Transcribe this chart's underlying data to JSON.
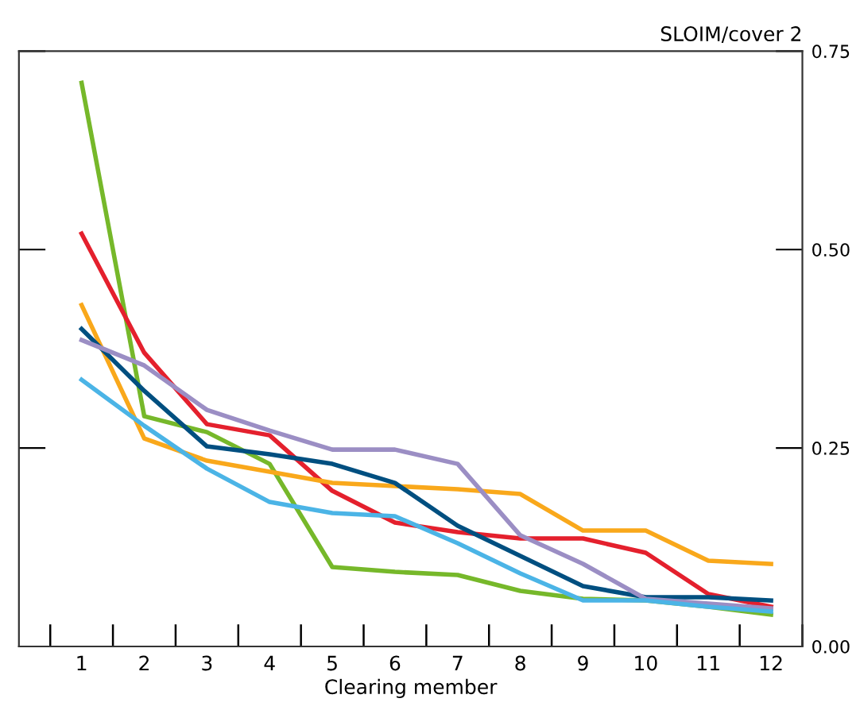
{
  "chart_data": {
    "type": "line",
    "ylabel": "SLOIM/cover 2",
    "xlabel": "Clearing member",
    "x": [
      1,
      2,
      3,
      4,
      5,
      6,
      7,
      8,
      9,
      10,
      11,
      12
    ],
    "xlim": [
      0,
      12.5
    ],
    "xticks": [
      {
        "value": 0.5,
        "label": null
      },
      1,
      {
        "value": 1.5,
        "label": null
      },
      2,
      {
        "value": 2.5,
        "label": null
      },
      3,
      {
        "value": 3.5,
        "label": null
      },
      4,
      {
        "value": 4.5,
        "label": null
      },
      5,
      {
        "value": 5.5,
        "label": null
      },
      6,
      {
        "value": 6.5,
        "label": null
      },
      7,
      {
        "value": 7.5,
        "label": null
      },
      8,
      {
        "value": 8.5,
        "label": null
      },
      9,
      {
        "value": 9.5,
        "label": null
      },
      10,
      {
        "value": 10.5,
        "label": null
      },
      11,
      {
        "value": 11.5,
        "label": null
      },
      12,
      {
        "value": 12.5,
        "label": null
      }
    ],
    "ylim": [
      0,
      0.75
    ],
    "yticks": [
      {
        "value": 0,
        "label": "0.00"
      },
      {
        "value": 0.25,
        "label": "0.25"
      },
      {
        "value": 0.5,
        "label": "0.50"
      },
      {
        "value": 0.75,
        "label": "0.75"
      }
    ],
    "grid": false,
    "legend": false,
    "marker": "none",
    "line_style": "solid",
    "series": [
      {
        "color": "#76b82a",
        "values": [
          0.71,
          0.29,
          0.27,
          0.23,
          0.1,
          0.094,
          0.09,
          0.07,
          0.06,
          0.058,
          0.05,
          0.04
        ]
      },
      {
        "color": "#e4202d",
        "values": [
          0.52,
          0.37,
          0.28,
          0.266,
          0.196,
          0.156,
          0.144,
          0.136,
          0.136,
          0.118,
          0.066,
          0.05
        ]
      },
      {
        "color": "#f9a81b",
        "values": [
          0.43,
          0.262,
          0.234,
          0.22,
          0.206,
          0.202,
          0.198,
          0.192,
          0.146,
          0.146,
          0.108,
          0.104
        ]
      },
      {
        "color": "#004f80",
        "values": [
          0.4,
          0.322,
          0.252,
          0.242,
          0.23,
          0.206,
          0.152,
          0.114,
          0.076,
          0.062,
          0.062,
          0.058
        ]
      },
      {
        "color": "#9b8ec4",
        "values": [
          0.386,
          0.354,
          0.298,
          0.272,
          0.248,
          0.248,
          0.23,
          0.14,
          0.104,
          0.06,
          0.054,
          0.048
        ]
      },
      {
        "color": "#4bb4e6",
        "values": [
          0.336,
          0.278,
          0.224,
          0.182,
          0.168,
          0.164,
          0.13,
          0.092,
          0.058,
          0.058,
          0.05,
          0.044
        ]
      }
    ]
  }
}
